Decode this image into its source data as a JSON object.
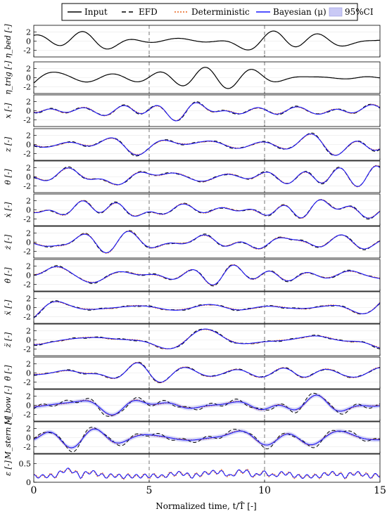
{
  "legend": {
    "items": [
      {
        "label": "Input",
        "color": "#000000",
        "style": "solid"
      },
      {
        "label": "EFD",
        "color": "#000000",
        "style": "dashed"
      },
      {
        "label": "Deterministic",
        "color": "#e8651e",
        "style": "dotted"
      },
      {
        "label": "Bayesian (μ)",
        "color": "#1a1aff",
        "style": "solid"
      },
      {
        "label": "95%CI",
        "color": "#c9c9f5",
        "style": "patch"
      }
    ]
  },
  "chart_data": {
    "type": "line",
    "xlabel": "Normalized time, t/T̂ [-]",
    "xlim": [
      0,
      15
    ],
    "xticks": [
      0,
      5,
      10,
      15
    ],
    "vertical_dashed_lines": [
      5,
      10
    ],
    "grid": "horizontal",
    "panels": [
      {
        "ylabel": "η_bed [-]",
        "ylim": [
          -3.5,
          3.5
        ],
        "yticks": [
          2,
          0,
          -2
        ],
        "series": [
          "Input"
        ],
        "amp": 1.4,
        "seed": 1
      },
      {
        "ylabel": "η_trig [-]",
        "ylim": [
          -3.5,
          3.5
        ],
        "yticks": [
          2,
          0,
          -2
        ],
        "series": [
          "Input"
        ],
        "amp": 1.5,
        "seed": 2
      },
      {
        "ylabel": "x [-]",
        "ylim": [
          -3.5,
          3.5
        ],
        "yticks": [
          2,
          0,
          -2
        ],
        "series": [
          "EFD",
          "Deterministic",
          "Bayesian (μ)"
        ],
        "amp": 1.4,
        "seed": 3
      },
      {
        "ylabel": "z [-]",
        "ylim": [
          -3.5,
          3.5
        ],
        "yticks": [
          2,
          0,
          -2
        ],
        "series": [
          "EFD",
          "Deterministic",
          "Bayesian (μ)"
        ],
        "amp": 1.5,
        "seed": 4
      },
      {
        "ylabel": "θ [-]",
        "ylim": [
          -3.5,
          3.5
        ],
        "yticks": [
          2,
          0,
          -2
        ],
        "series": [
          "EFD",
          "Deterministic",
          "Bayesian (μ)"
        ],
        "amp": 1.5,
        "seed": 5
      },
      {
        "ylabel": "ẋ [-]",
        "ylim": [
          -3.5,
          3.5
        ],
        "yticks": [
          2,
          0,
          -2
        ],
        "series": [
          "EFD",
          "Deterministic",
          "Bayesian (μ)"
        ],
        "amp": 1.4,
        "seed": 6
      },
      {
        "ylabel": "ż [-]",
        "ylim": [
          -3.5,
          3.5
        ],
        "yticks": [
          2,
          0,
          -2
        ],
        "series": [
          "EFD",
          "Deterministic",
          "Bayesian (μ)"
        ],
        "amp": 1.5,
        "seed": 7
      },
      {
        "ylabel": "θ̇ [-]",
        "ylim": [
          -3.5,
          3.5
        ],
        "yticks": [
          2,
          0,
          -2
        ],
        "series": [
          "EFD",
          "Deterministic",
          "Bayesian (μ)"
        ],
        "amp": 1.4,
        "seed": 8
      },
      {
        "ylabel": "ẍ [-]",
        "ylim": [
          -3.5,
          3.5
        ],
        "yticks": [
          2,
          0,
          -2
        ],
        "series": [
          "EFD",
          "Deterministic",
          "Bayesian (μ)"
        ],
        "amp": 1.4,
        "seed": 9
      },
      {
        "ylabel": "z̈ [-]",
        "ylim": [
          -3.5,
          3.5
        ],
        "yticks": [
          2,
          0,
          -2
        ],
        "series": [
          "EFD",
          "Deterministic",
          "Bayesian (μ)"
        ],
        "amp": 1.5,
        "seed": 10
      },
      {
        "ylabel": "θ̈ [-]",
        "ylim": [
          -3.5,
          3.5
        ],
        "yticks": [
          2,
          0,
          -2
        ],
        "series": [
          "EFD",
          "Deterministic",
          "Bayesian (μ)"
        ],
        "amp": 1.4,
        "seed": 11
      },
      {
        "ylabel": "M_bow [-]",
        "ylim": [
          -3.5,
          3.5
        ],
        "yticks": [
          2,
          0,
          -2
        ],
        "series": [
          "EFD",
          "Deterministic",
          "Bayesian (μ)",
          "95%CI"
        ],
        "amp": 1.4,
        "seed": 12
      },
      {
        "ylabel": "M_stern [-]",
        "ylim": [
          -3.5,
          3.5
        ],
        "yticks": [
          2,
          0,
          -2
        ],
        "series": [
          "EFD",
          "Deterministic",
          "Bayesian (μ)",
          "95%CI"
        ],
        "amp": 1.4,
        "seed": 13
      },
      {
        "ylabel": "ε [-]",
        "ylim": [
          0,
          0.75
        ],
        "yticks": [
          0.5,
          0
        ],
        "series": [
          "Deterministic",
          "Bayesian (μ)"
        ],
        "amp": 0.25,
        "seed": 14,
        "kind": "error"
      }
    ]
  }
}
